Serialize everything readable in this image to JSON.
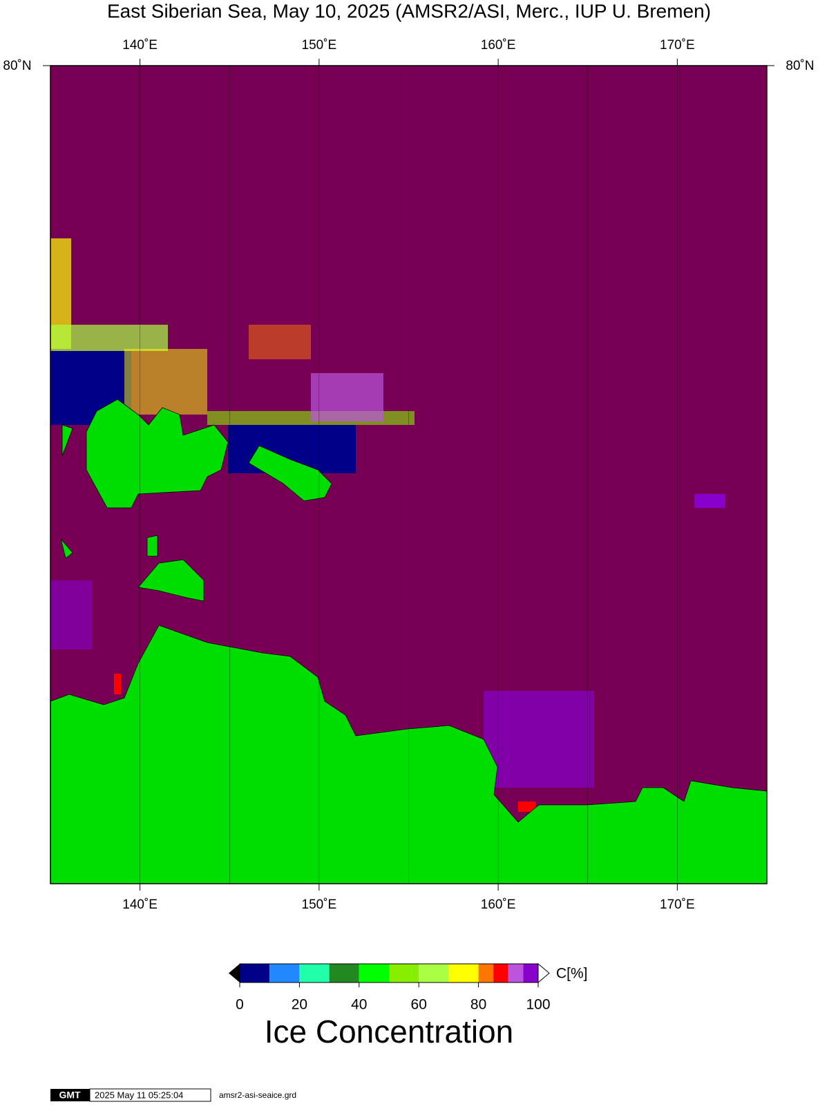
{
  "header": {
    "title": "East Siberian Sea, May 10, 2025 (AMSR2/ASI, Merc., IUP U. Bremen)"
  },
  "map": {
    "xlim": [
      135,
      175
    ],
    "lon_ticks": [
      {
        "value": 140,
        "label": "140˚E"
      },
      {
        "value": 150,
        "label": "150˚E"
      },
      {
        "value": 160,
        "label": "160˚E"
      },
      {
        "value": 170,
        "label": "170˚E"
      }
    ],
    "lat_label": "80˚N",
    "ocean_color": "#770055",
    "land_color": "#00dd00"
  },
  "colorbar": {
    "bounds": [
      0,
      10,
      20,
      30,
      40,
      50,
      60,
      70,
      80,
      85,
      90,
      95,
      100
    ],
    "colors": [
      "#000088",
      "#2288ff",
      "#22ffaa",
      "#228822",
      "#00ff00",
      "#88ee00",
      "#aaff44",
      "#ffff00",
      "#ff7700",
      "#ff0000",
      "#bb55dd",
      "#8800cc"
    ],
    "ticks": [
      0,
      20,
      40,
      60,
      80,
      100
    ],
    "unit": "C[%]",
    "title": "Ice Concentration"
  },
  "footer": {
    "logo": "GMT",
    "timestamp": "2025 May 11 05:25:04",
    "file": "amsr2-asi-seaice.grd"
  }
}
